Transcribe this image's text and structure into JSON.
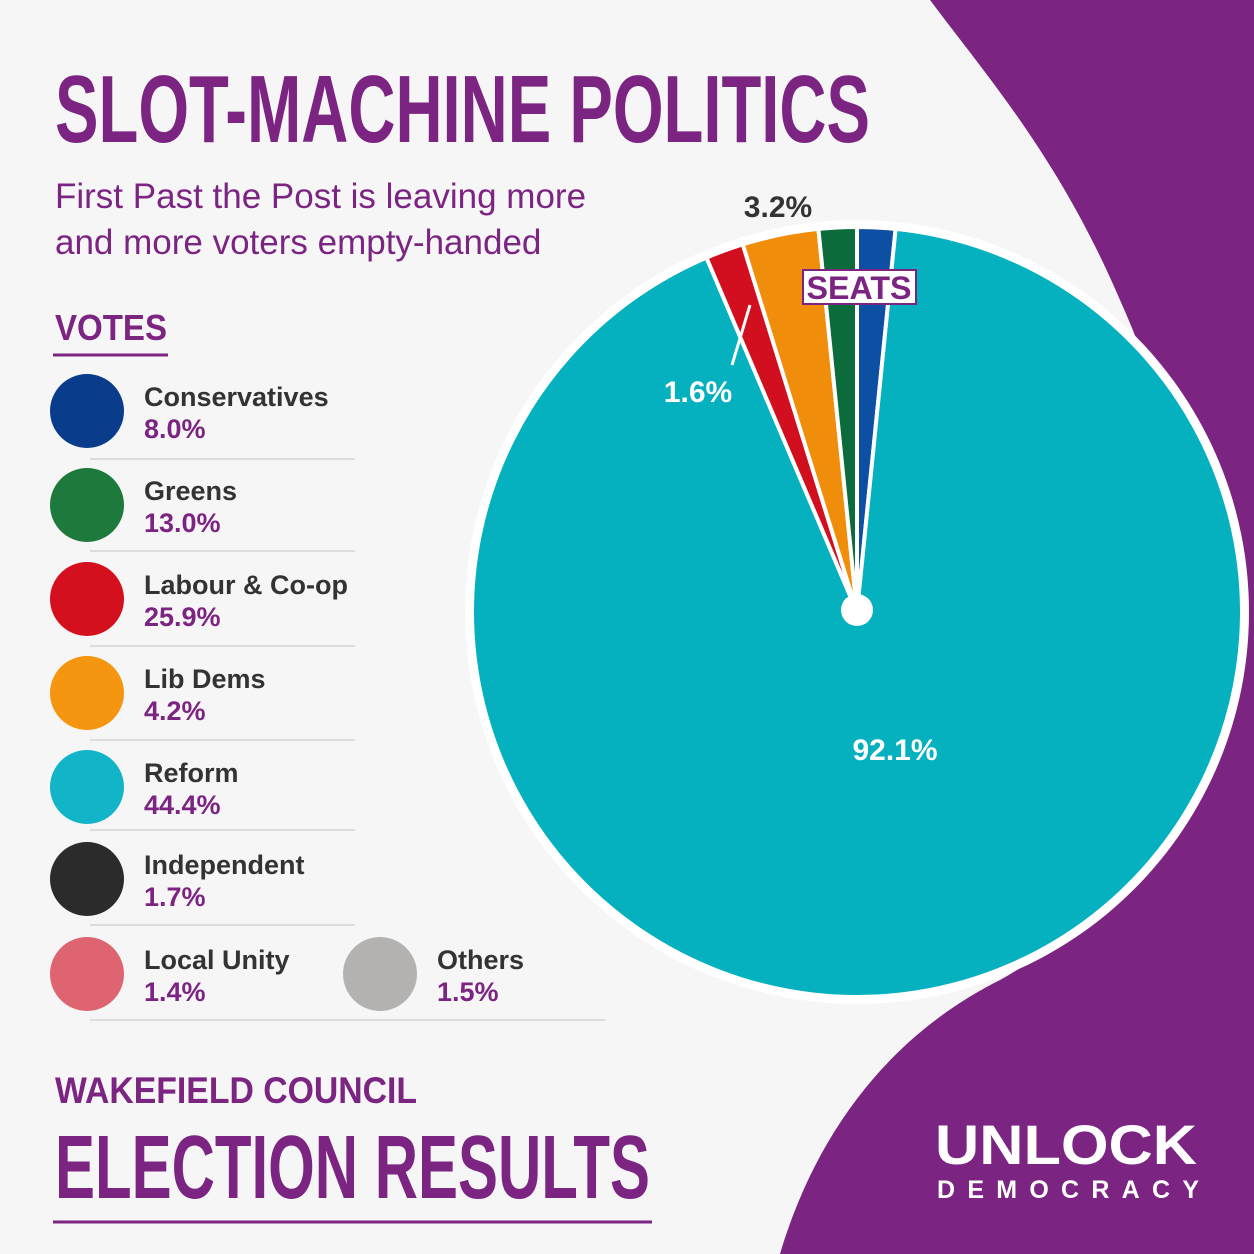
{
  "header": {
    "title": "SLOT-MACHINE POLITICS",
    "subtitle_lines": [
      "First Past the Post is leaving more",
      "and more voters empty-handed"
    ]
  },
  "votes": {
    "heading": "VOTES",
    "items": [
      {
        "name": "Conservatives",
        "share": "8.0%",
        "color": "#0a3c8c"
      },
      {
        "name": "Greens",
        "share": "13.0%",
        "color": "#1e7a3c"
      },
      {
        "name": "Labour & Co-op",
        "share": "25.9%",
        "color": "#d5101e"
      },
      {
        "name": "Lib Dems",
        "share": "4.2%",
        "color": "#f4960f"
      },
      {
        "name": "Reform",
        "share": "44.4%",
        "color": "#12b5c8"
      },
      {
        "name": "Independent",
        "share": "1.7%",
        "color": "#2b2b2b"
      },
      {
        "name": "Local Unity",
        "share": "1.4%",
        "color": "#dd6470"
      },
      {
        "name": "Others",
        "share": "1.5%",
        "color": "#b3b2b1"
      }
    ]
  },
  "chart_data": {
    "type": "pie",
    "label": "SEATS",
    "categories": [
      "Conservatives",
      "Reform",
      "Labour & Co-op",
      "Lib Dems",
      "Greens"
    ],
    "values": [
      1.6,
      92.1,
      1.6,
      3.2,
      1.6
    ],
    "value_labels": [
      null,
      "92.1%",
      "1.6%",
      "3.2%",
      null
    ],
    "colors": [
      "#0d4fa3",
      "#05b0bf",
      "#d20f1f",
      "#f08d0a",
      "#0b6b3a"
    ]
  },
  "footer": {
    "line1": "WAKEFIELD COUNCIL",
    "line2": "ELECTION RESULTS",
    "brand1": "UNLOCK",
    "brand2": "DEMOCRACY"
  }
}
